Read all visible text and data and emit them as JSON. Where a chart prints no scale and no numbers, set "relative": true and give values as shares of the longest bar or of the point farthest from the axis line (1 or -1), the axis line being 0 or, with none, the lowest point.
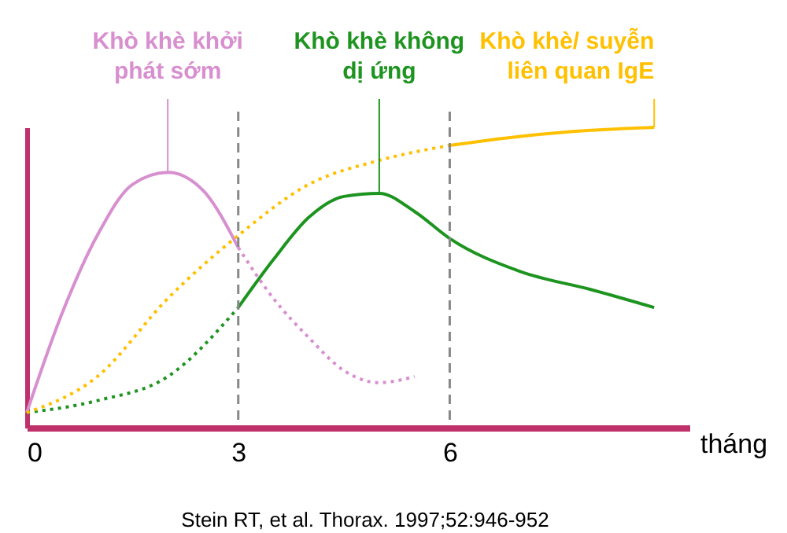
{
  "chart_data": {
    "type": "line",
    "relative": true,
    "xlabel": "tháng",
    "series": [
      {
        "name": "Khò khè khởi phát sớm",
        "color": "#d88fcf",
        "line_style": "solid",
        "x": [
          0,
          0.5,
          1,
          1.5,
          2,
          2.5,
          3
        ],
        "values": [
          0.05,
          0.38,
          0.64,
          0.81,
          0.85,
          0.79,
          0.6
        ]
      },
      {
        "color": "#d88fcf",
        "line_style": "dotted",
        "x": [
          3,
          3.5,
          4,
          4.5,
          5,
          5.5
        ],
        "values": [
          0.6,
          0.43,
          0.3,
          0.19,
          0.15,
          0.17
        ]
      },
      {
        "color": "#1e9420",
        "line_style": "dotted",
        "x": [
          0,
          1,
          2,
          3
        ],
        "values": [
          0.05,
          0.09,
          0.17,
          0.4
        ]
      },
      {
        "name": "Khò khè không dị ứng",
        "color": "#1e9420",
        "line_style": "solid",
        "x": [
          3,
          3.5,
          4,
          4.5,
          5,
          5.5,
          6,
          7,
          8,
          8.9
        ],
        "values": [
          0.4,
          0.56,
          0.7,
          0.77,
          0.78,
          0.72,
          0.63,
          0.52,
          0.46,
          0.4
        ]
      },
      {
        "color": "#ffc000",
        "line_style": "dotted",
        "x": [
          0,
          1,
          2,
          3,
          4,
          5,
          6
        ],
        "values": [
          0.05,
          0.17,
          0.43,
          0.64,
          0.81,
          0.89,
          0.94
        ]
      },
      {
        "name": "Khò khè/ suyễn liên quan IgE",
        "color": "#ffc000",
        "line_style": "solid",
        "x": [
          6,
          7,
          8,
          8.9
        ],
        "values": [
          0.94,
          0.97,
          0.99,
          1
        ]
      }
    ],
    "xlim": [
      0,
      9.4
    ],
    "xticks": [
      0,
      3,
      6
    ],
    "tick_labels": "x",
    "grid": false,
    "marker": "none",
    "ref_lines": [
      {
        "axis": "x",
        "value": 3,
        "color": "#888888",
        "line_style": "dashed"
      },
      {
        "axis": "x",
        "value": 6,
        "color": "#888888",
        "line_style": "dashed"
      }
    ],
    "annotations": [
      "Stein RT, et al. Thorax. 1997;52:946-952"
    ]
  }
}
